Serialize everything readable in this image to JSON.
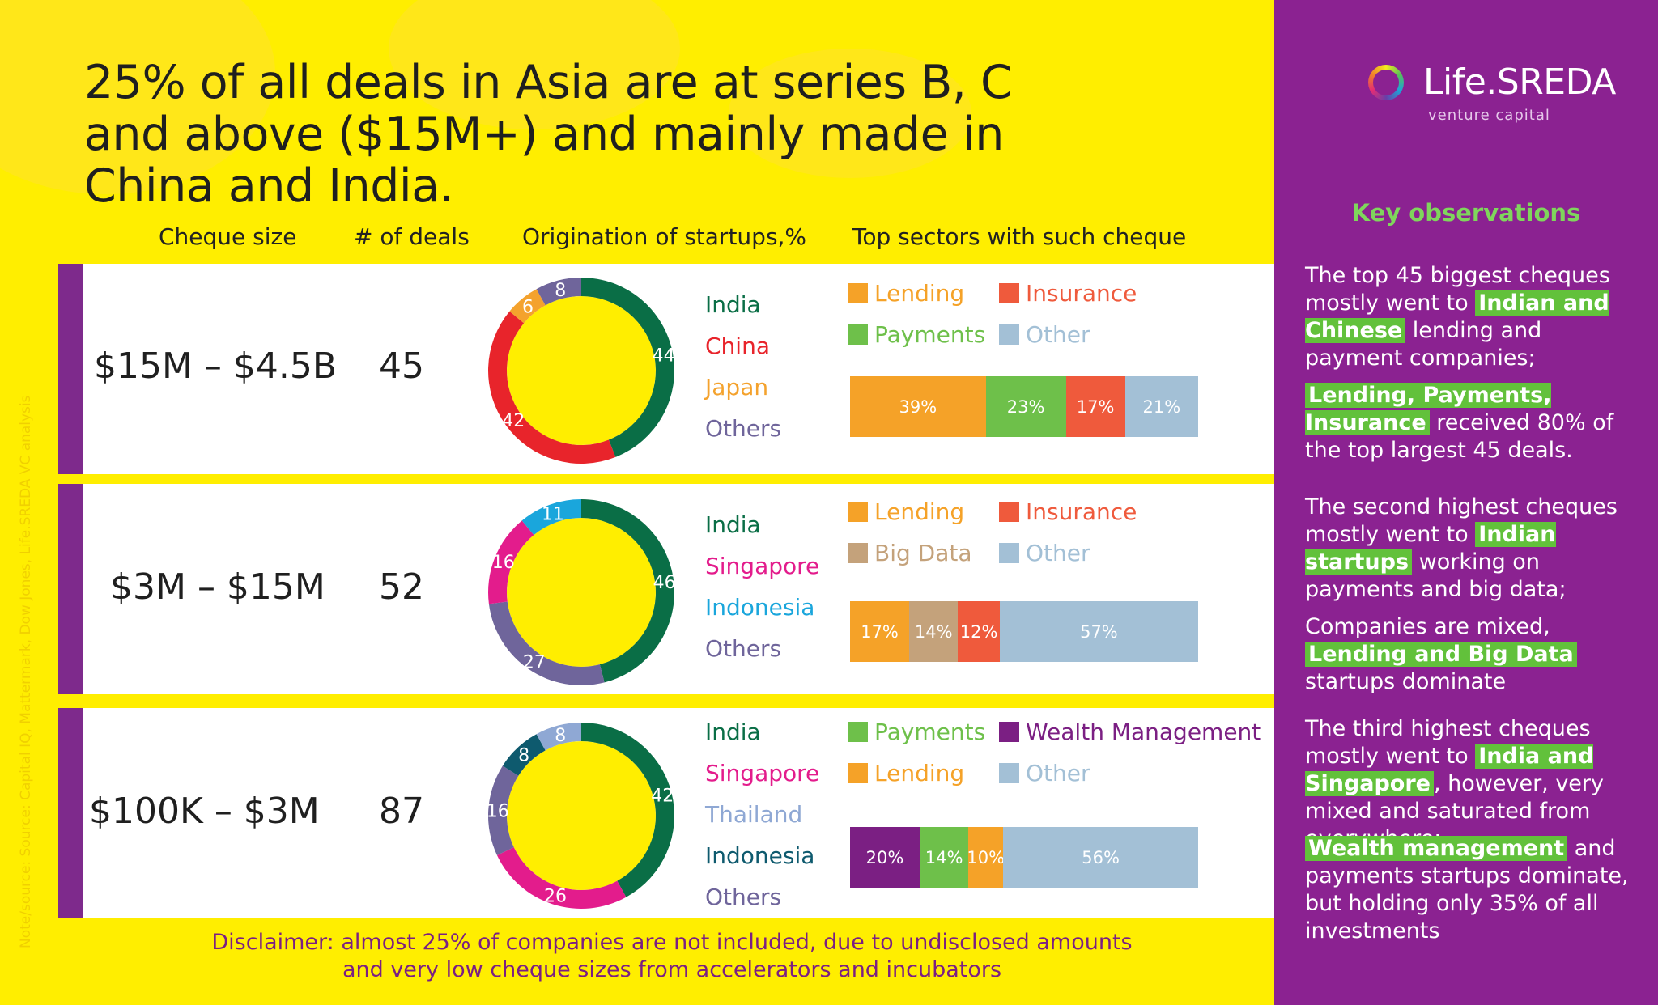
{
  "title": "25% of all deals in Asia are at series B, C and above ($15M+) and mainly made in China and India.",
  "columns": {
    "cheque": "Cheque size",
    "deals": "# of deals",
    "origination": "Origination of startups,%",
    "sectors": "Top sectors with such cheque"
  },
  "source_note": "Note/source: Source: Capital IQ, Mattermark, Dow Jones, Life.SREDA VC analysis",
  "disclaimer_line1": "Disclaimer: almost 25% of companies are not included, due to undisclosed amounts",
  "disclaimer_line2": "and very low cheque sizes from accelerators and incubators",
  "brand": {
    "name": "Life.SREDA",
    "tagline": "venture capital"
  },
  "sidebar": {
    "heading": "Key observations",
    "blocks": [
      [
        {
          "text": "The top 45 biggest cheques mostly went to ",
          "hl": false
        },
        {
          "text": "Indian and Chinese",
          "hl": true
        },
        {
          "text": " lending and payment companies;",
          "hl": false
        }
      ],
      [
        {
          "text": "Lending, Payments, Insurance",
          "hl": true
        },
        {
          "text": " received 80% of the top largest 45 deals.",
          "hl": false
        }
      ],
      [
        {
          "text": "The second highest cheques mostly went to ",
          "hl": false
        },
        {
          "text": "Indian startups",
          "hl": true
        },
        {
          "text": " working on payments and big data;",
          "hl": false
        }
      ],
      [
        {
          "text": "Companies are mixed, ",
          "hl": false
        },
        {
          "text": "Lending and Big Data",
          "hl": true
        },
        {
          "text": " startups dominate",
          "hl": false
        }
      ],
      [
        {
          "text": "The third highest cheques mostly went to ",
          "hl": false
        },
        {
          "text": "India and Singapore",
          "hl": true
        },
        {
          "text": ", however, very mixed and saturated from everywhere;",
          "hl": false
        }
      ],
      [
        {
          "text": "Wealth management",
          "hl": true
        },
        {
          "text": " and payments startups dominate, but holding only 35% of all investments",
          "hl": false
        }
      ]
    ]
  },
  "colors": {
    "background": "#ffee00",
    "sidebar": "#8b2291",
    "highlight": "#62c13b",
    "stripe": "#7e2a8c"
  },
  "chart_data": [
    {
      "type": "pie",
      "cheque": "$15M – $4.5B",
      "deals": "45",
      "origination": [
        {
          "name": "India",
          "value": 44,
          "color": "#0a6e46"
        },
        {
          "name": "China",
          "value": 42,
          "color": "#e8242b"
        },
        {
          "name": "Japan",
          "value": 6,
          "color": "#f4a22d"
        },
        {
          "name": "Others",
          "value": 8,
          "color": "#6f659b"
        }
      ],
      "legend": [
        {
          "name": "Lending",
          "color": "#f5a228"
        },
        {
          "name": "Insurance",
          "color": "#ef5a3c"
        },
        {
          "name": "Payments",
          "color": "#6ec04a"
        },
        {
          "name": "Other",
          "color": "#a3c0d6"
        }
      ],
      "sectors": [
        {
          "name": "Lending",
          "value": 39,
          "label": "39%",
          "color": "#f5a228"
        },
        {
          "name": "Payments",
          "value": 23,
          "label": "23%",
          "color": "#6ec04a"
        },
        {
          "name": "Insurance",
          "value": 17,
          "label": "17%",
          "color": "#ef5a3c"
        },
        {
          "name": "Other",
          "value": 21,
          "label": "21%",
          "color": "#a3c0d6"
        }
      ]
    },
    {
      "type": "pie",
      "cheque": "$3M – $15M",
      "deals": "52",
      "origination": [
        {
          "name": "India",
          "value": 46,
          "color": "#0a6e46"
        },
        {
          "name": "Others",
          "value": 27,
          "color": "#6f659b"
        },
        {
          "name": "Singapore",
          "value": 16,
          "color": "#e31c8c"
        },
        {
          "name": "Indonesia",
          "value": 11,
          "color": "#1aa6dc"
        }
      ],
      "legend": [
        {
          "name": "Lending",
          "color": "#f5a228"
        },
        {
          "name": "Insurance",
          "color": "#ef5a3c"
        },
        {
          "name": "Big Data",
          "color": "#c4a27b"
        },
        {
          "name": "Other",
          "color": "#a3c0d6"
        }
      ],
      "sectors": [
        {
          "name": "Lending",
          "value": 17,
          "label": "17%",
          "color": "#f5a228"
        },
        {
          "name": "Big Data",
          "value": 14,
          "label": "14%",
          "color": "#c4a27b"
        },
        {
          "name": "Insurance",
          "value": 12,
          "label": "12%",
          "color": "#ef5a3c"
        },
        {
          "name": "Other",
          "value": 57,
          "label": "57%",
          "color": "#a3c0d6"
        }
      ]
    },
    {
      "type": "pie",
      "cheque": "$100K – $3M",
      "deals": "87",
      "origination": [
        {
          "name": "India",
          "value": 42,
          "color": "#0a6e46"
        },
        {
          "name": "Singapore",
          "value": 26,
          "color": "#e31c8c"
        },
        {
          "name": "Others",
          "value": 16,
          "color": "#6f659b"
        },
        {
          "name": "Indonesia",
          "value": 8,
          "color": "#0e5a6e"
        },
        {
          "name": "Thailand",
          "value": 8,
          "color": "#8fa8d4"
        }
      ],
      "legend": [
        {
          "name": "Payments",
          "color": "#6ec04a"
        },
        {
          "name": "Wealth Management",
          "color": "#7b1f83"
        },
        {
          "name": "Lending",
          "color": "#f5a228"
        },
        {
          "name": "Other",
          "color": "#a3c0d6"
        }
      ],
      "sectors": [
        {
          "name": "Wealth Management",
          "value": 20,
          "label": "20%",
          "color": "#7b1f83"
        },
        {
          "name": "Payments",
          "value": 14,
          "label": "14%",
          "color": "#6ec04a"
        },
        {
          "name": "Lending",
          "value": 10,
          "label": "10%",
          "color": "#f5a228"
        },
        {
          "name": "Other",
          "value": 56,
          "label": "56%",
          "color": "#a3c0d6"
        }
      ]
    }
  ],
  "country_labels": [
    [
      "India",
      "China",
      "Japan",
      "Others"
    ],
    [
      "India",
      "Singapore",
      "Indonesia",
      "Others"
    ],
    [
      "India",
      "Singapore",
      "Thailand",
      "Indonesia",
      "Others"
    ]
  ],
  "country_colors": [
    [
      "#0a6e46",
      "#e8242b",
      "#f4a22d",
      "#6f659b"
    ],
    [
      "#0a6e46",
      "#e31c8c",
      "#1aa6dc",
      "#6f659b"
    ],
    [
      "#0a6e46",
      "#e31c8c",
      "#8fa8d4",
      "#0e5a6e",
      "#6f659b"
    ]
  ]
}
